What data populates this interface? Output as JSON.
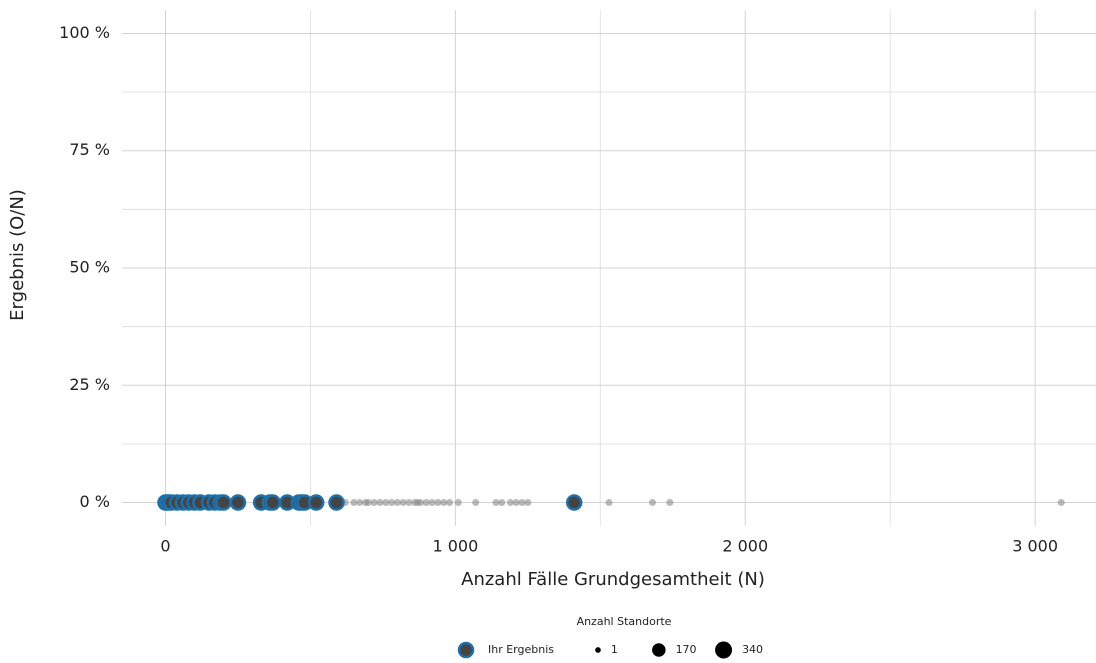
{
  "chart_data": {
    "type": "scatter",
    "x_label": "Anzahl Fälle Grundgesamtheit (N)",
    "y_label": "Ergebnis (O/N)",
    "xlim": [
      -150,
      3210
    ],
    "ylim": [
      -5,
      105
    ],
    "xticks": [
      0,
      {
        "value": 1000,
        "label": "1 000"
      },
      {
        "value": 2000,
        "label": "2 000"
      },
      {
        "value": 3000,
        "label": "3 000"
      }
    ],
    "yticks": [
      {
        "value": 0,
        "label": "0 %"
      },
      {
        "value": 25,
        "label": "25 %"
      },
      {
        "value": 50,
        "label": "50 %"
      },
      {
        "value": 75,
        "label": "75 %"
      },
      {
        "value": 100,
        "label": "100 %"
      }
    ],
    "x_minor_ticks": [
      500,
      1500,
      2500
    ],
    "y_minor_ticks": [
      12.5,
      37.5,
      62.5,
      87.5
    ],
    "grid": true,
    "legend_title": "Anzahl Standorte",
    "size_legend": [
      1,
      170,
      340
    ],
    "series": [
      {
        "color": "#8a8a8a",
        "x": [
          600,
          620,
          650,
          670,
          690,
          700,
          720,
          740,
          760,
          780,
          800,
          820,
          840,
          860,
          870,
          880,
          900,
          920,
          940,
          960,
          980,
          1010,
          1070,
          1140,
          1160,
          1190,
          1210,
          1230,
          1250,
          1530,
          1680,
          1740,
          3090
        ],
        "values": [
          0,
          0,
          0,
          0,
          0,
          0,
          0,
          0,
          0,
          0,
          0,
          0,
          0,
          0,
          0,
          0,
          0,
          0,
          0,
          0,
          0,
          0,
          0,
          0,
          0,
          0,
          0,
          0,
          0,
          0,
          0,
          0,
          0
        ]
      },
      {
        "name": "Ihr Ergebnis",
        "color": "#1f6fa8",
        "x": [
          0,
          5,
          10,
          20,
          40,
          60,
          80,
          100,
          120,
          150,
          170,
          190,
          200,
          250,
          330,
          360,
          370,
          420,
          460,
          470,
          480,
          520,
          590,
          1410
        ],
        "values": [
          0,
          0,
          0,
          0,
          0,
          0,
          0,
          0,
          0,
          0,
          0,
          0,
          0,
          0,
          0,
          0,
          0,
          0,
          0,
          0,
          0,
          0,
          0,
          0
        ]
      }
    ]
  }
}
